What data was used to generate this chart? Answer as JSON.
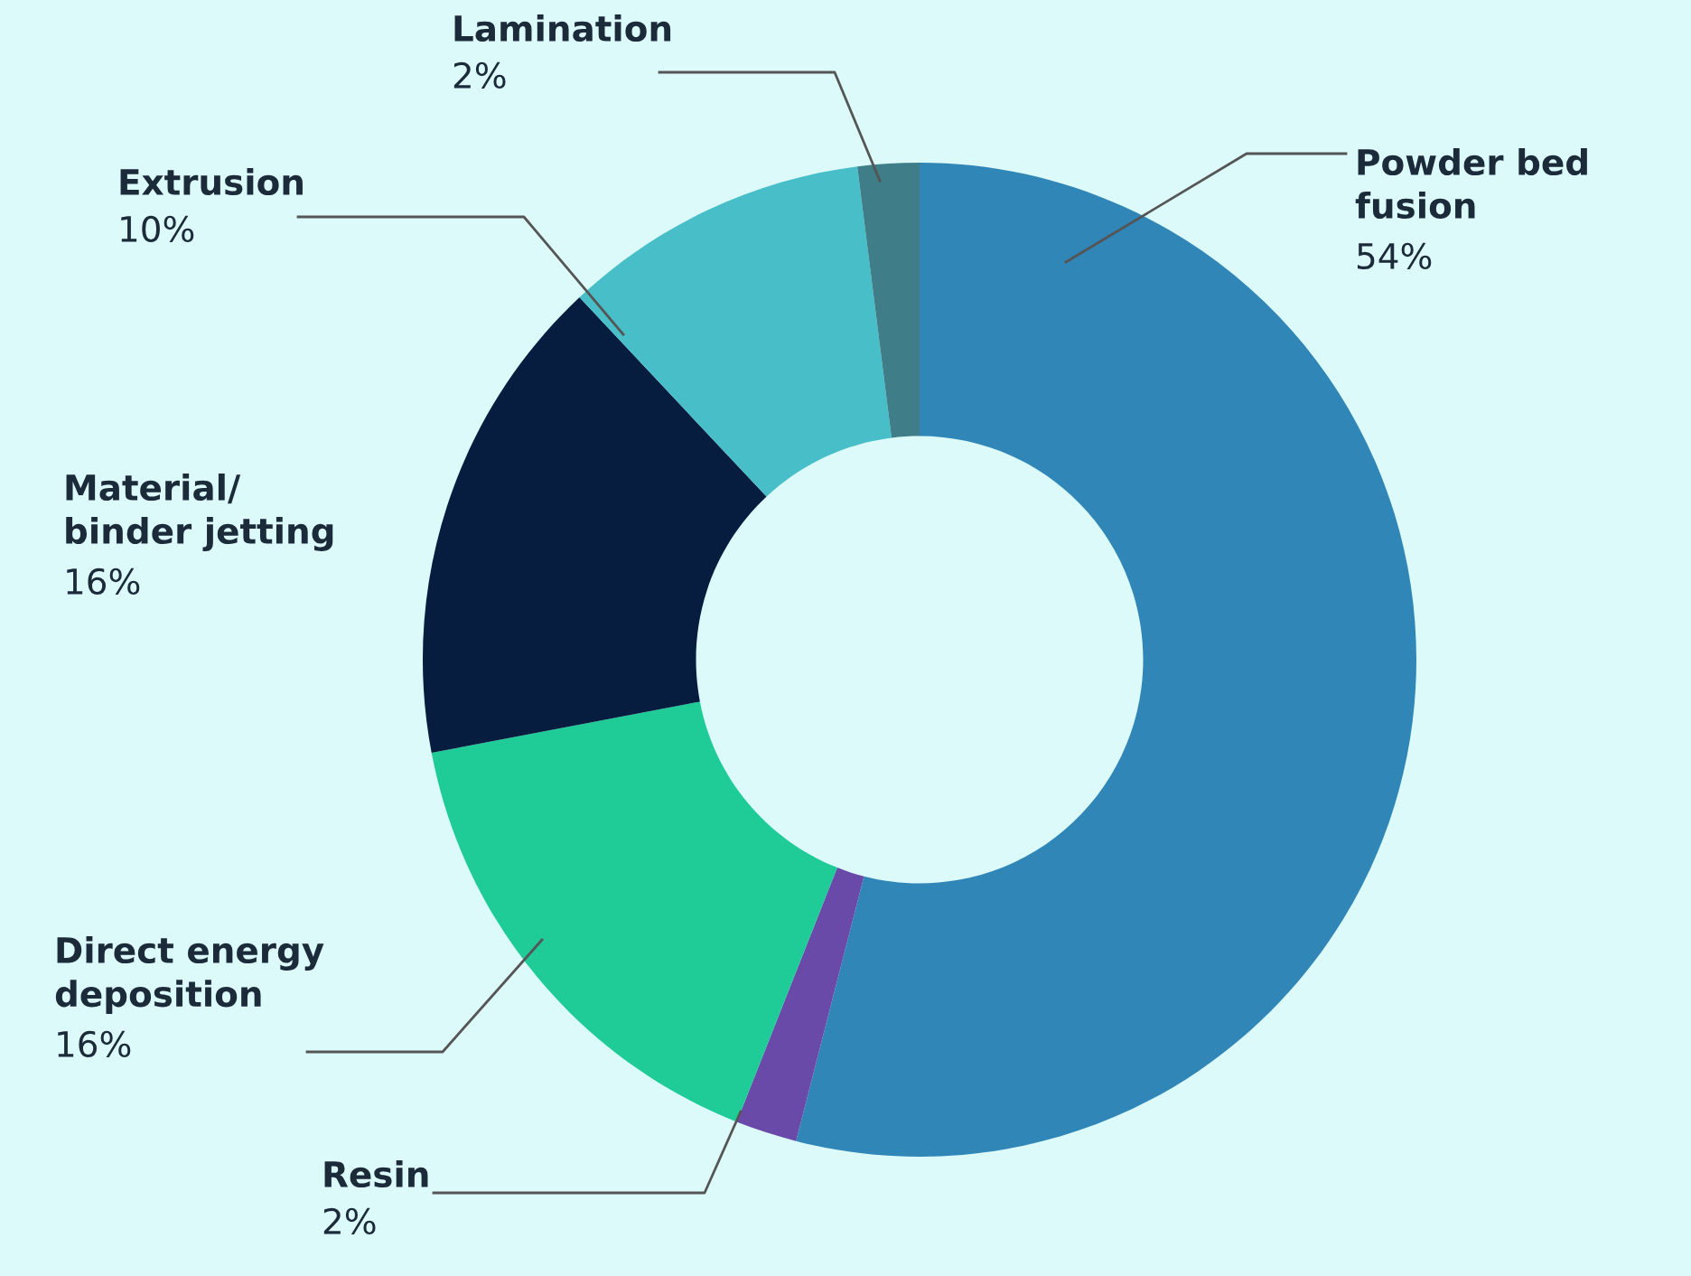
{
  "chart_data": {
    "type": "donut",
    "categories": [
      "Powder bed\nfusion",
      "Resin",
      "Direct energy\ndeposition",
      "Material/\nbinder jetting",
      "Extrusion",
      "Lamination"
    ],
    "values": [
      54,
      2,
      16,
      16,
      10,
      2
    ],
    "value_labels": [
      "54%",
      "2%",
      "16%",
      "16%",
      "10%",
      "2%"
    ],
    "colors": [
      "#2f86b7",
      "#6a4aa8",
      "#1fcb97",
      "#061d40",
      "#47bec8",
      "#3f7d88"
    ]
  }
}
